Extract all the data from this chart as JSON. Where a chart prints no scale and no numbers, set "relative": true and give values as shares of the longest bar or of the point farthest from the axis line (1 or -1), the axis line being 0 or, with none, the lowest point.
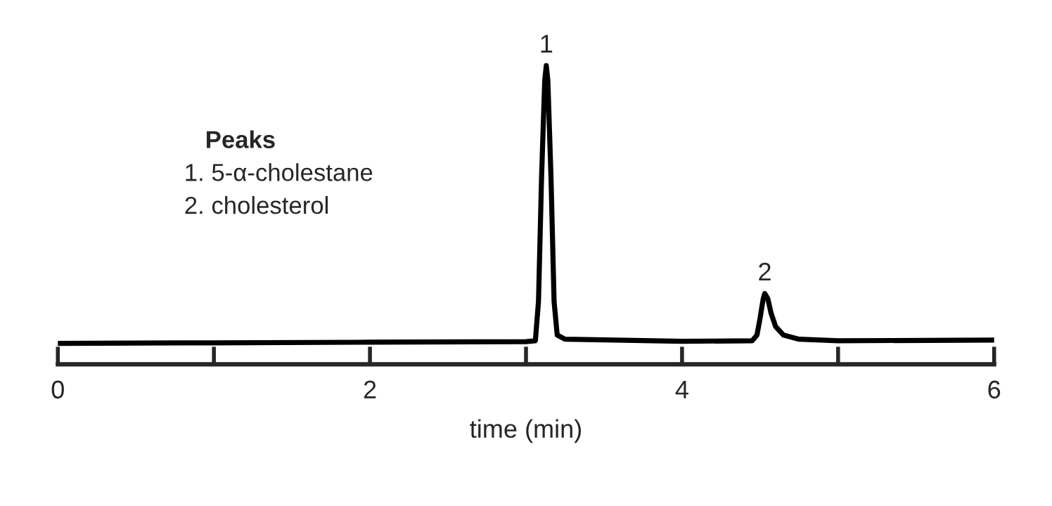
{
  "chart_data": {
    "type": "line",
    "relative": true,
    "xlabel": "time (min)",
    "xlim": [
      0,
      6
    ],
    "xticks": [
      0,
      {
        "value": 1,
        "label": null
      },
      2,
      {
        "value": 3,
        "label": null
      },
      4,
      {
        "value": 5,
        "label": null
      },
      6
    ],
    "tick_labels": "x",
    "grid": false,
    "marker": "none",
    "line_style": "solid",
    "series": [
      {
        "color": "#000000",
        "x": [
          0,
          1,
          2,
          3,
          3.06,
          3.08,
          3.1,
          3.12,
          3.13,
          3.14,
          3.16,
          3.18,
          3.2,
          3.25,
          4,
          4.45,
          4.48,
          4.5,
          4.52,
          4.53,
          4.55,
          4.57,
          4.6,
          4.65,
          4.75,
          5,
          6
        ],
        "values": [
          0.07,
          0.072,
          0.074,
          0.076,
          0.079,
          0.21,
          0.63,
          0.95,
          1,
          0.95,
          0.63,
          0.21,
          0.098,
          0.084,
          0.077,
          0.079,
          0.098,
          0.154,
          0.219,
          0.237,
          0.219,
          0.172,
          0.126,
          0.098,
          0.084,
          0.079,
          0.081
        ]
      }
    ],
    "annotations": [
      {
        "text": "1",
        "x": 3.13,
        "y": 1
      },
      {
        "text": "2",
        "x": 4.53,
        "y": 0.237
      },
      "Peaks",
      "1. 5-α-cholestane",
      "2. cholesterol"
    ]
  }
}
